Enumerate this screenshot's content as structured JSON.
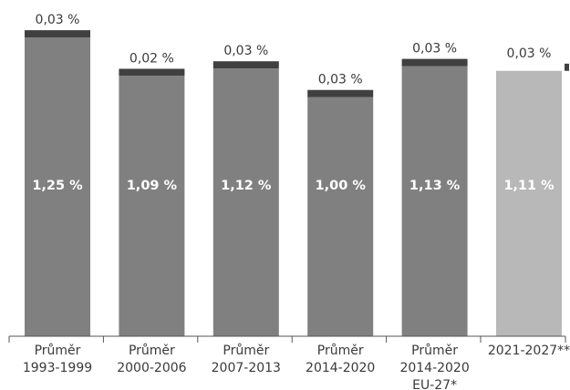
{
  "chart_data": {
    "type": "bar",
    "stacked": true,
    "categories": [
      [
        "Průměr",
        "1993-1999"
      ],
      [
        "Průměr",
        "2000-2006"
      ],
      [
        "Průměr",
        "2007-2013"
      ],
      [
        "Průměr",
        "2014-2020"
      ],
      [
        "Průměr",
        "2014-2020",
        "EU-27*"
      ],
      [
        "2021-2027**"
      ]
    ],
    "series": [
      {
        "values": [
          1.25,
          1.09,
          1.12,
          1.0,
          1.13,
          1.11
        ],
        "labels": [
          "1,25 %",
          "1,09 %",
          "1,12 %",
          "1,00 %",
          "1,13 %",
          "1,11 %"
        ],
        "colors": [
          "#808080",
          "#808080",
          "#808080",
          "#808080",
          "#808080",
          "#b8b8b8"
        ]
      },
      {
        "values": [
          0.03,
          0.02,
          0.03,
          0.03,
          0.03,
          0.03
        ],
        "labels": [
          "0,03 %",
          "0,02 %",
          "0,03 %",
          "0,03 %",
          "0,03 %",
          "0,03 %"
        ],
        "colors": [
          "#404040",
          "#404040",
          "#404040",
          "#404040",
          "#404040",
          "#404040"
        ]
      }
    ],
    "ylim": [
      0,
      1.3
    ],
    "grid": false,
    "legend": "none",
    "title": "",
    "xlabel": "",
    "ylabel": ""
  }
}
